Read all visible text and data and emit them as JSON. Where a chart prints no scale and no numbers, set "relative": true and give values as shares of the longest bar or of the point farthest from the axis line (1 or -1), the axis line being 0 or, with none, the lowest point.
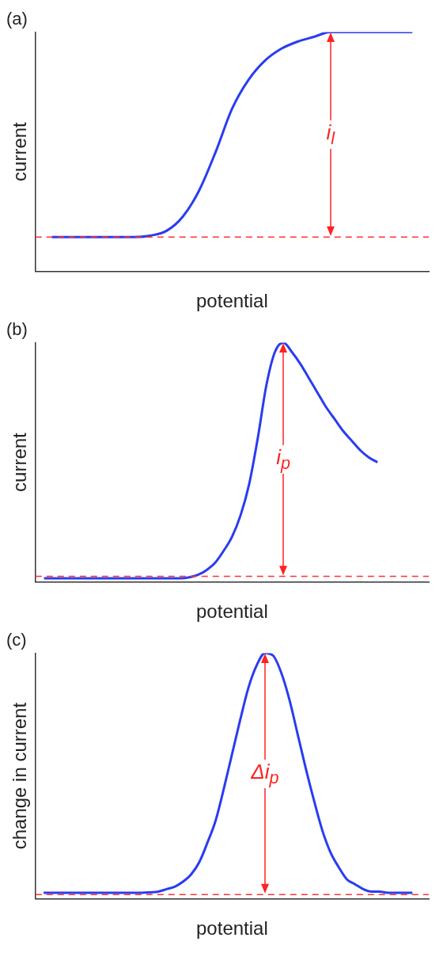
{
  "chart_data": [
    {
      "type": "line",
      "title": "(a)",
      "xlabel": "potential",
      "ylabel": "current",
      "relative": true,
      "legend": false,
      "categories": [
        null,
        null,
        null,
        null,
        null,
        null,
        null,
        null,
        null,
        null,
        null,
        null,
        null,
        null,
        null,
        null,
        null,
        null,
        null,
        null,
        null,
        null,
        null,
        null,
        null
      ],
      "series": [
        {
          "color": "#2a3cf0",
          "values": [
            null,
            0.144,
            0.144,
            0.144,
            0.144,
            0.144,
            0.144,
            0.15,
            0.17,
            0.23,
            0.34,
            0.5,
            0.68,
            0.8,
            0.88,
            0.93,
            0.96,
            0.98,
            1.0,
            1.0,
            1.0,
            1.0,
            1.0,
            1.0,
            null
          ]
        }
      ],
      "ref_lines": [
        {
          "axis": "y",
          "value": 0.144,
          "color": "#ff3333",
          "line_style": "dashed"
        }
      ],
      "annotations": [
        "i$_{l}$"
      ]
    },
    {
      "type": "line",
      "title": "(b)",
      "xlabel": "potential",
      "ylabel": "current",
      "relative": true,
      "legend": false,
      "categories": [
        null,
        null,
        null,
        null,
        null,
        null,
        null,
        null,
        null,
        null,
        null,
        null,
        null,
        null,
        null,
        null,
        null,
        null,
        null,
        null,
        null,
        null,
        null,
        null,
        null,
        null,
        null,
        null,
        null,
        null,
        null,
        null,
        null,
        null,
        null,
        null,
        null,
        null,
        null,
        null,
        null,
        null,
        null,
        null,
        null,
        null,
        null
      ],
      "series": [
        {
          "color": "#2a3cf0",
          "values": [
            null,
            0.016,
            0.016,
            0.016,
            0.016,
            0.016,
            0.016,
            0.016,
            0.016,
            0.016,
            0.016,
            0.016,
            0.016,
            0.016,
            0.016,
            0.016,
            0.016,
            0.016,
            0.02,
            0.03,
            0.05,
            0.08,
            0.13,
            0.19,
            0.28,
            0.41,
            0.6,
            0.82,
            0.96,
            1.0,
            0.96,
            0.91,
            0.85,
            0.79,
            0.73,
            0.68,
            0.63,
            0.59,
            0.55,
            0.52,
            0.5,
            null,
            null,
            null,
            null,
            null,
            null
          ]
        }
      ],
      "ref_lines": [
        {
          "axis": "y",
          "value": 0.024,
          "color": "#ff3333",
          "line_style": "dashed"
        }
      ],
      "annotations": [
        "i$_{p}$"
      ]
    },
    {
      "type": "line",
      "title": "(c)",
      "xlabel": "potential",
      "ylabel": "change in current",
      "relative": true,
      "legend": false,
      "categories": [
        null,
        null,
        null,
        null,
        null,
        null,
        null,
        null,
        null,
        null,
        null,
        null,
        null,
        null,
        null,
        null,
        null,
        null,
        null,
        null,
        null,
        null,
        null,
        null,
        null,
        null,
        null,
        null,
        null,
        null,
        null,
        null,
        null,
        null,
        null,
        null,
        null,
        null,
        null,
        null,
        null,
        null,
        null,
        null,
        null,
        null,
        null,
        null,
        null
      ],
      "series": [
        {
          "color": "#2a3cf0",
          "values": [
            null,
            0.025,
            0.025,
            0.025,
            0.025,
            0.025,
            0.025,
            0.025,
            0.025,
            0.025,
            0.025,
            0.025,
            0.025,
            0.025,
            0.027,
            0.03,
            0.04,
            0.05,
            0.07,
            0.1,
            0.15,
            0.23,
            0.32,
            0.45,
            0.59,
            0.73,
            0.86,
            0.95,
            1.0,
            0.99,
            0.92,
            0.81,
            0.67,
            0.53,
            0.4,
            0.28,
            0.19,
            0.13,
            0.08,
            0.06,
            0.04,
            0.03,
            0.03,
            0.025,
            0.025,
            0.025,
            0.025,
            null,
            null
          ]
        }
      ],
      "ref_lines": [
        {
          "axis": "y",
          "value": 0.018,
          "color": "#ff3333",
          "line_style": "dashed"
        }
      ],
      "annotations": [
        "Δi$_{p}$"
      ]
    }
  ]
}
